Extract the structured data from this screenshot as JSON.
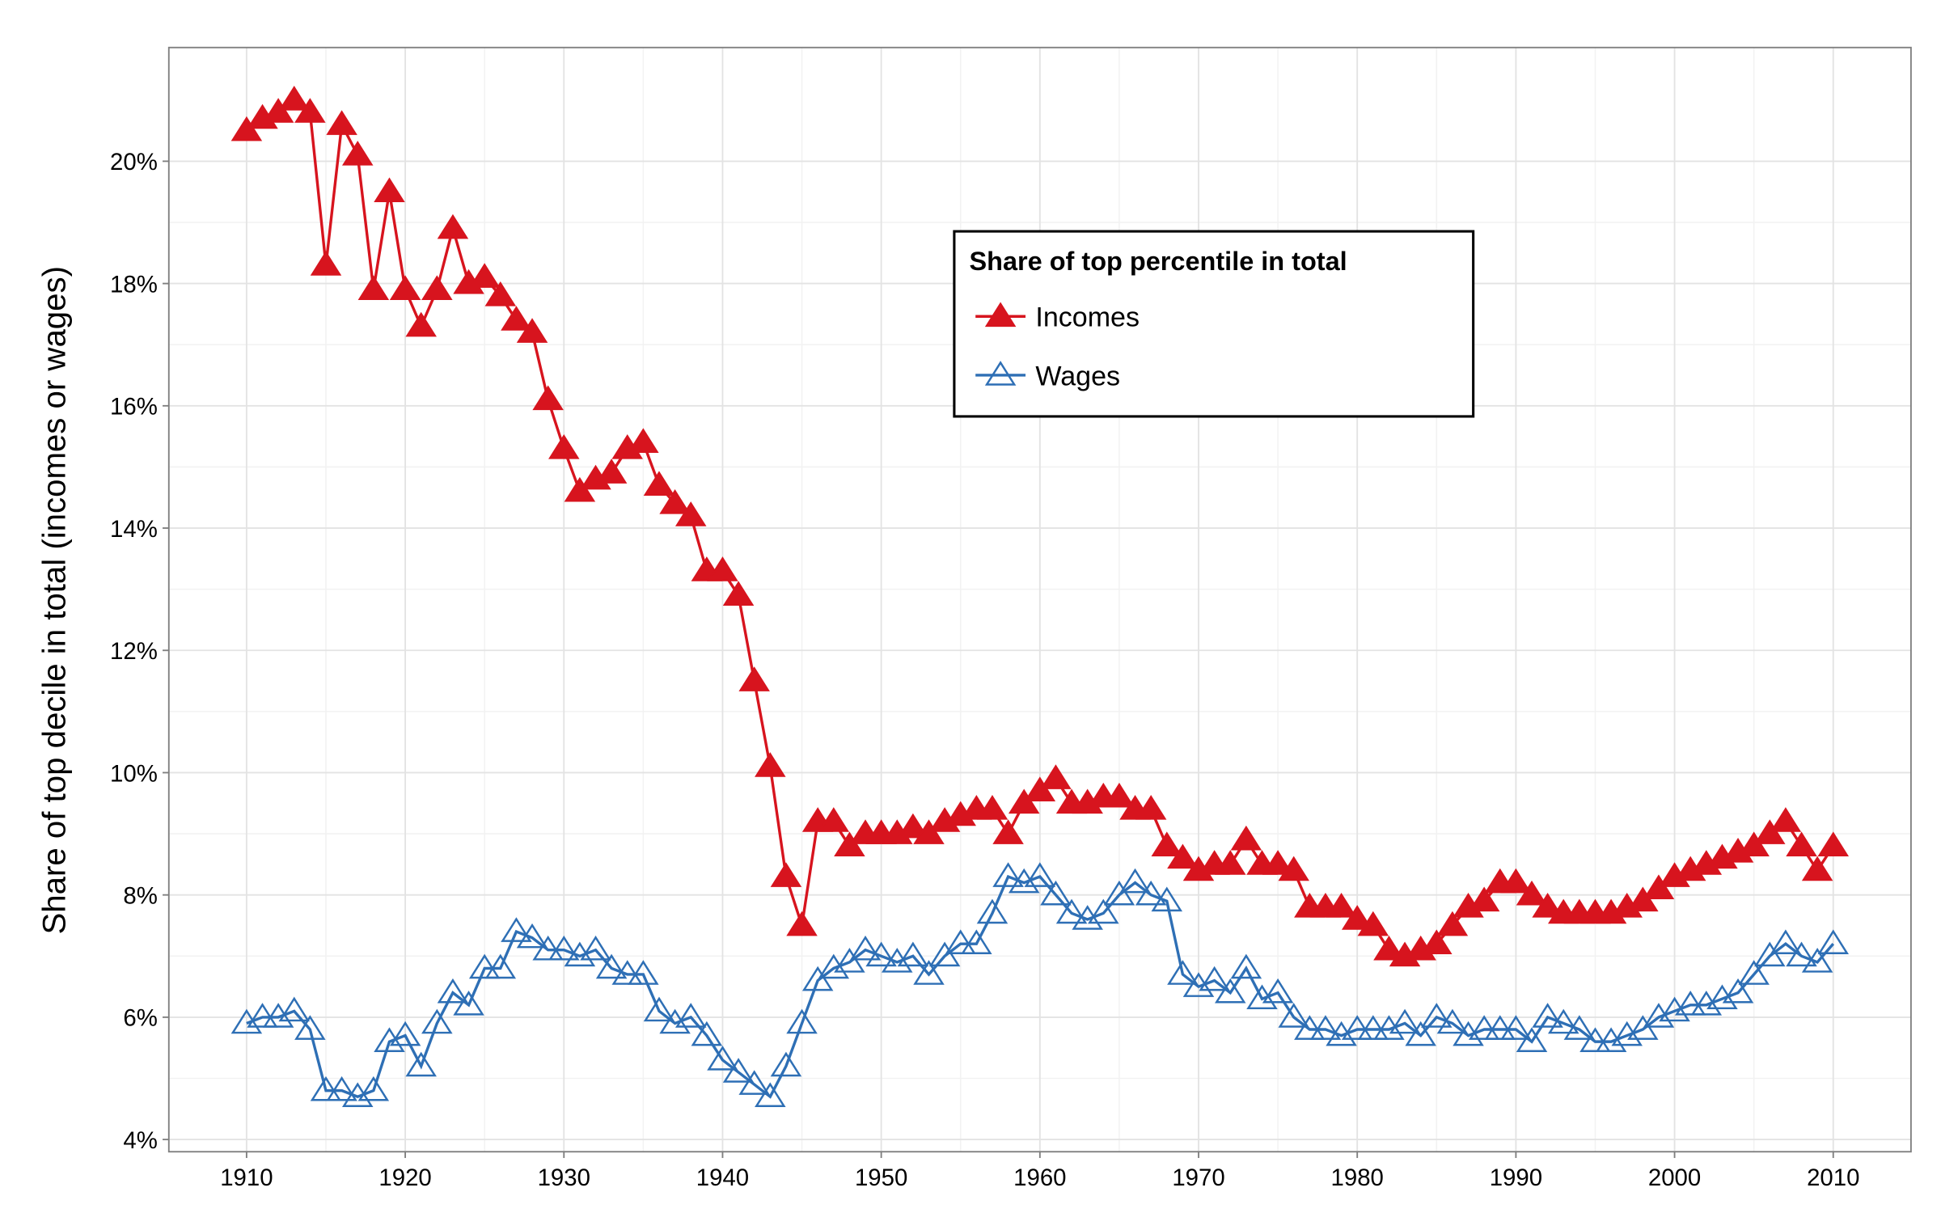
{
  "chart_data": {
    "type": "line",
    "y_label": "Share of top decile in total (incomes or wages)",
    "legend_title": "Share of top percentile in total",
    "x": [
      1910,
      1911,
      1912,
      1913,
      1914,
      1915,
      1916,
      1917,
      1918,
      1919,
      1920,
      1921,
      1922,
      1923,
      1924,
      1925,
      1926,
      1927,
      1928,
      1929,
      1930,
      1931,
      1932,
      1933,
      1934,
      1935,
      1936,
      1937,
      1938,
      1939,
      1940,
      1941,
      1942,
      1943,
      1944,
      1945,
      1946,
      1947,
      1948,
      1949,
      1950,
      1951,
      1952,
      1953,
      1954,
      1955,
      1956,
      1957,
      1958,
      1959,
      1960,
      1961,
      1962,
      1963,
      1964,
      1965,
      1966,
      1967,
      1968,
      1969,
      1970,
      1971,
      1972,
      1973,
      1974,
      1975,
      1976,
      1977,
      1978,
      1979,
      1980,
      1981,
      1982,
      1983,
      1984,
      1985,
      1986,
      1987,
      1988,
      1989,
      1990,
      1991,
      1992,
      1993,
      1994,
      1995,
      1996,
      1997,
      1998,
      1999,
      2000,
      2001,
      2002,
      2003,
      2004,
      2005,
      2006,
      2007,
      2008,
      2009,
      2010
    ],
    "series": [
      {
        "name": "Incomes",
        "color": "#d7141e",
        "marker": "triangle-filled",
        "values": [
          20.5,
          20.7,
          20.8,
          21.0,
          20.8,
          18.3,
          20.6,
          20.1,
          17.9,
          19.5,
          17.9,
          17.3,
          17.9,
          18.9,
          18.0,
          18.1,
          17.8,
          17.4,
          17.2,
          16.1,
          15.3,
          14.6,
          14.8,
          14.9,
          15.3,
          15.4,
          14.7,
          14.4,
          14.2,
          13.3,
          13.3,
          12.9,
          11.5,
          10.1,
          8.3,
          7.5,
          9.2,
          9.2,
          8.8,
          9.0,
          9.0,
          9.0,
          9.1,
          9.0,
          9.2,
          9.3,
          9.4,
          9.4,
          9.0,
          9.5,
          9.7,
          9.9,
          9.5,
          9.5,
          9.6,
          9.6,
          9.4,
          9.4,
          8.8,
          8.6,
          8.4,
          8.5,
          8.5,
          8.9,
          8.5,
          8.5,
          8.4,
          7.8,
          7.8,
          7.8,
          7.6,
          7.5,
          7.1,
          7.0,
          7.1,
          7.2,
          7.5,
          7.8,
          7.9,
          8.2,
          8.2,
          8.0,
          7.8,
          7.7,
          7.7,
          7.7,
          7.7,
          7.8,
          7.9,
          8.1,
          8.3,
          8.4,
          8.5,
          8.6,
          8.7,
          8.8,
          9.0,
          9.2,
          8.8,
          8.4,
          8.8
        ]
      },
      {
        "name": "Wages",
        "color": "#2e6fb5",
        "marker": "triangle-open",
        "values": [
          5.9,
          6.0,
          6.0,
          6.1,
          5.8,
          4.8,
          4.8,
          4.7,
          4.8,
          5.6,
          5.7,
          5.2,
          5.9,
          6.4,
          6.2,
          6.8,
          6.8,
          7.4,
          7.3,
          7.1,
          7.1,
          7.0,
          7.1,
          6.8,
          6.7,
          6.7,
          6.1,
          5.9,
          6.0,
          5.7,
          5.3,
          5.1,
          4.9,
          4.7,
          5.2,
          5.9,
          6.6,
          6.8,
          6.9,
          7.1,
          7.0,
          6.9,
          7.0,
          6.7,
          7.0,
          7.2,
          7.2,
          7.7,
          8.3,
          8.2,
          8.3,
          8.0,
          7.7,
          7.6,
          7.7,
          8.0,
          8.2,
          8.0,
          7.9,
          6.7,
          6.5,
          6.6,
          6.4,
          6.8,
          6.3,
          6.4,
          6.0,
          5.8,
          5.8,
          5.7,
          5.8,
          5.8,
          5.8,
          5.9,
          5.7,
          6.0,
          5.9,
          5.7,
          5.8,
          5.8,
          5.8,
          5.6,
          6.0,
          5.9,
          5.8,
          5.6,
          5.6,
          5.7,
          5.8,
          6.0,
          6.1,
          6.2,
          6.2,
          6.3,
          6.4,
          6.7,
          7.0,
          7.2,
          7.0,
          6.9,
          7.2
        ]
      }
    ],
    "xlim": [
      1905.1,
      2014.9
    ],
    "ylim": [
      3.8,
      21.86
    ],
    "xticks": [
      1910,
      1920,
      1930,
      1940,
      1950,
      1960,
      1970,
      1980,
      1990,
      2000,
      2010
    ],
    "yticks": [
      {
        "value": 4,
        "label": "4%"
      },
      {
        "value": 6,
        "label": "6%"
      },
      {
        "value": 8,
        "label": "8%"
      },
      {
        "value": 10,
        "label": "10%"
      },
      {
        "value": 12,
        "label": "12%"
      },
      {
        "value": 14,
        "label": "14%"
      },
      {
        "value": 16,
        "label": "16%"
      },
      {
        "value": 18,
        "label": "18%"
      },
      {
        "value": 20,
        "label": "20%"
      }
    ],
    "grid": true
  }
}
